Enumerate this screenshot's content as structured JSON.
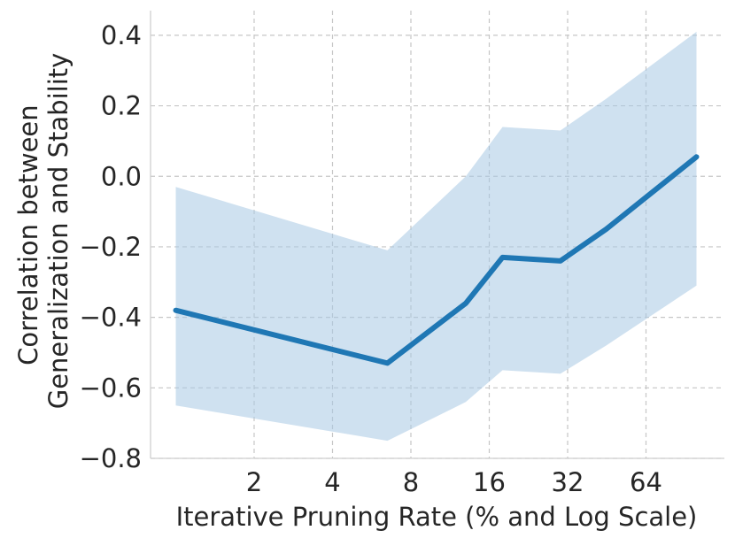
{
  "chart_data": {
    "type": "line",
    "title": "",
    "xlabel": "Iterative Pruning Rate (% and Log Scale)",
    "ylabel_lines": [
      "Correlation between",
      "Generalization and Stability"
    ],
    "x_scale": "log2",
    "xlim": [
      0.8,
      128
    ],
    "ylim": [
      -0.8,
      0.47
    ],
    "x_ticks": [
      2,
      4,
      8,
      16,
      32,
      64
    ],
    "x_tick_labels": [
      "2",
      "4",
      "8",
      "16",
      "32",
      "64"
    ],
    "y_ticks": [
      0.4,
      0.2,
      0.0,
      -0.2,
      -0.4,
      -0.6,
      -0.8
    ],
    "y_tick_labels": [
      "0.4",
      "0.2",
      "0.0",
      "−0.2",
      "−0.4",
      "−0.6",
      "−0.8"
    ],
    "grid": true,
    "legend": "none",
    "series": [
      {
        "x": [
          1,
          6.5,
          13,
          18,
          30,
          45,
          100
        ],
        "y": [
          -0.38,
          -0.53,
          -0.36,
          -0.23,
          -0.24,
          -0.15,
          0.055
        ],
        "lower": [
          -0.65,
          -0.75,
          -0.64,
          -0.55,
          -0.56,
          -0.48,
          -0.31
        ],
        "upper": [
          -0.03,
          -0.21,
          0.0,
          0.14,
          0.13,
          0.22,
          0.41
        ],
        "line_color": "#1f77b4",
        "band_color": "#a8c8e4"
      }
    ]
  }
}
